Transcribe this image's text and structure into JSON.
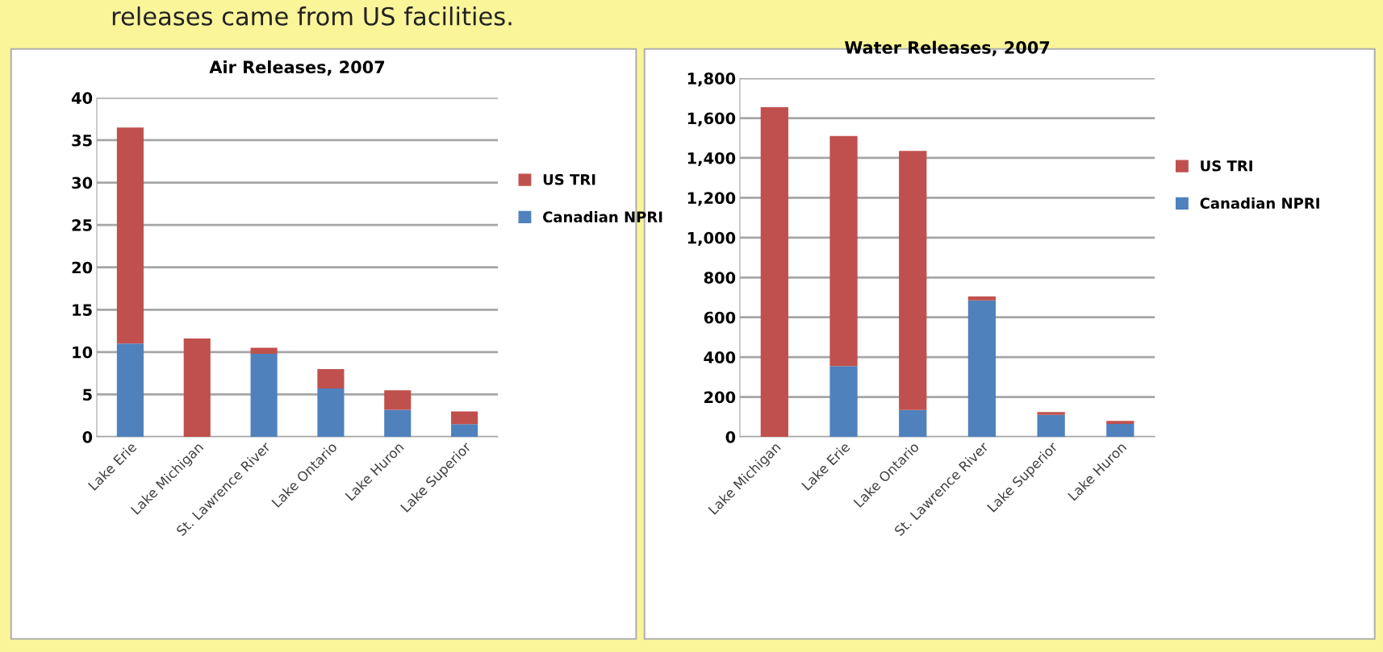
{
  "chart_data": [
    {
      "type": "bar",
      "title": "Air Releases, 2007",
      "annotations": [
        "releases came from US facilities."
      ],
      "categories": [
        "Lake Erie",
        "Lake Michigan",
        "St. Lawrence River",
        "Lake Ontario",
        "Lake Huron",
        "Lake Superior"
      ],
      "stacked": true,
      "series": [
        {
          "name": "Canadian NPRI",
          "color": "#4f81bd",
          "values": [
            11,
            0,
            9.8,
            5.7,
            3.2,
            1.5
          ]
        },
        {
          "name": "US TRI",
          "color": "#c0504d",
          "values": [
            25.5,
            11.6,
            0.7,
            2.3,
            2.3,
            1.5
          ]
        }
      ],
      "ylim": [
        0,
        40
      ],
      "yticks": [
        0,
        5,
        10,
        15,
        20,
        25,
        30,
        35,
        40
      ],
      "grid": "y",
      "legend": "right"
    },
    {
      "type": "bar",
      "title": "Water Releases, 2007",
      "categories": [
        "Lake Michigan",
        "Lake Erie",
        "Lake Ontario",
        "St. Lawrence River",
        "Lake Superior",
        "Lake Huron"
      ],
      "stacked": true,
      "series": [
        {
          "name": "Canadian NPRI",
          "color": "#4f81bd",
          "values": [
            0,
            355,
            135,
            685,
            110,
            65
          ]
        },
        {
          "name": "US TRI",
          "color": "#c0504d",
          "values": [
            1655,
            1155,
            1300,
            20,
            15,
            15
          ]
        }
      ],
      "ylim": [
        0,
        1800
      ],
      "yticks": [
        0,
        {
          "value": 200,
          "label": "200"
        },
        {
          "value": 400,
          "label": "400"
        },
        {
          "value": 600,
          "label": "600"
        },
        {
          "value": 800,
          "label": "800"
        },
        {
          "value": 1000,
          "label": "1,000"
        },
        {
          "value": 1200,
          "label": "1,200"
        },
        {
          "value": 1400,
          "label": "1,400"
        },
        {
          "value": 1600,
          "label": "1,600"
        },
        {
          "value": 1800,
          "label": "1,800"
        }
      ],
      "grid": "y",
      "legend": "right"
    }
  ]
}
